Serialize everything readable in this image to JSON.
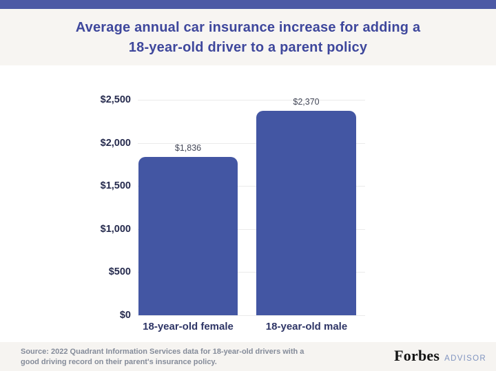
{
  "header": {
    "accent_color": "#4c59a5",
    "band_color": "#f7f5f2",
    "title_line1": "Average annual car insurance increase for adding a",
    "title_line2": "18-year-old driver to a parent policy",
    "title_color": "#3e479c"
  },
  "chart_data": {
    "type": "bar",
    "title": "Average annual car insurance increase for adding a 18-year-old driver to a parent policy",
    "categories": [
      "18-year-old female",
      "18-year-old male"
    ],
    "values": [
      1836,
      2370
    ],
    "value_labels": [
      "$1,836",
      "$2,370"
    ],
    "y_ticks": [
      "$2,500",
      "$2,000",
      "$1,500",
      "$1,000",
      "$500",
      "$0"
    ],
    "ylim": [
      0,
      2500
    ],
    "xlabel": "",
    "ylabel": "",
    "grid": "horizontal-light",
    "legend": "none",
    "bar_color": "#4356a3"
  },
  "footer": {
    "source_line1": "Source: 2022 Quadrant Information Services data for 18-year-old drivers with a",
    "source_line2": "good driving record on their parent's insurance policy.",
    "brand_name": "Forbes",
    "brand_suffix": "ADVISOR"
  }
}
